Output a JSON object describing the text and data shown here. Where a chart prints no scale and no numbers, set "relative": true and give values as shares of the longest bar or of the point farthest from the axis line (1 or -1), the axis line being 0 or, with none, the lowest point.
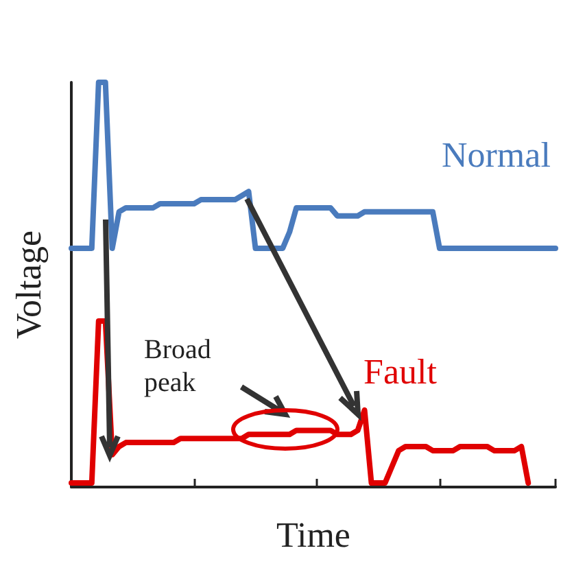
{
  "chart_data": {
    "type": "line",
    "xlabel": "Time",
    "ylabel": "Voltage",
    "relative": true,
    "line_style": "solid",
    "categories": [
      null,
      null,
      null,
      null,
      null,
      null,
      null,
      null,
      null,
      null,
      null,
      null,
      null,
      null,
      null,
      null,
      null,
      null,
      null,
      null,
      null,
      null,
      null,
      null,
      null,
      null,
      null,
      null,
      null,
      null,
      null,
      null,
      null,
      null,
      null,
      null,
      null,
      null,
      null,
      null,
      null,
      null,
      null,
      null,
      null,
      null,
      null,
      null,
      null,
      null,
      null,
      null,
      null,
      null,
      null,
      null,
      null,
      null,
      null,
      null,
      null,
      null,
      null,
      null,
      null,
      null,
      null,
      null,
      null,
      null,
      null,
      null
    ],
    "series": [
      {
        "name": "Normal",
        "color": "#4a7bbd",
        "values": [
          0.59,
          0.59,
          0.59,
          0.59,
          1.0,
          1.0,
          0.59,
          0.68,
          0.69,
          0.69,
          0.69,
          0.69,
          0.69,
          0.7,
          0.7,
          0.7,
          0.7,
          0.7,
          0.7,
          0.71,
          0.71,
          0.71,
          0.71,
          0.71,
          0.71,
          0.72,
          0.73,
          0.59,
          0.59,
          0.59,
          0.59,
          0.59,
          0.63,
          0.69,
          0.69,
          0.69,
          0.69,
          0.69,
          0.69,
          0.67,
          0.67,
          0.67,
          0.67,
          0.68,
          0.68,
          0.68,
          0.68,
          0.68,
          0.68,
          0.68,
          0.68,
          0.68,
          0.68,
          0.68,
          0.59,
          0.59,
          0.59,
          0.59,
          0.59,
          0.59,
          0.59,
          0.59,
          0.59,
          0.59,
          0.59,
          0.59,
          0.59,
          0.59,
          0.59,
          0.59,
          0.59,
          0.59
        ]
      },
      {
        "name": "Fault",
        "color": "#e00000",
        "values": [
          0.01,
          0.01,
          0.01,
          0.01,
          0.41,
          0.41,
          0.08,
          0.1,
          0.11,
          0.11,
          0.11,
          0.11,
          0.11,
          0.11,
          0.11,
          0.11,
          0.12,
          0.12,
          0.12,
          0.12,
          0.12,
          0.12,
          0.12,
          0.12,
          0.12,
          0.12,
          0.13,
          0.13,
          0.13,
          0.13,
          0.13,
          0.13,
          0.13,
          0.14,
          0.14,
          0.14,
          0.14,
          0.14,
          0.14,
          0.13,
          0.13,
          0.13,
          0.14,
          0.19,
          0.01,
          0.01,
          0.01,
          0.05,
          0.09,
          0.1,
          0.1,
          0.1,
          0.1,
          0.09,
          0.09,
          0.09,
          0.09,
          0.1,
          0.1,
          0.1,
          0.1,
          0.1,
          0.09,
          0.09,
          0.09,
          0.09,
          0.1,
          0.01,
          null,
          null,
          null,
          null
        ]
      }
    ],
    "annotations": [
      "Broad peak"
    ]
  }
}
